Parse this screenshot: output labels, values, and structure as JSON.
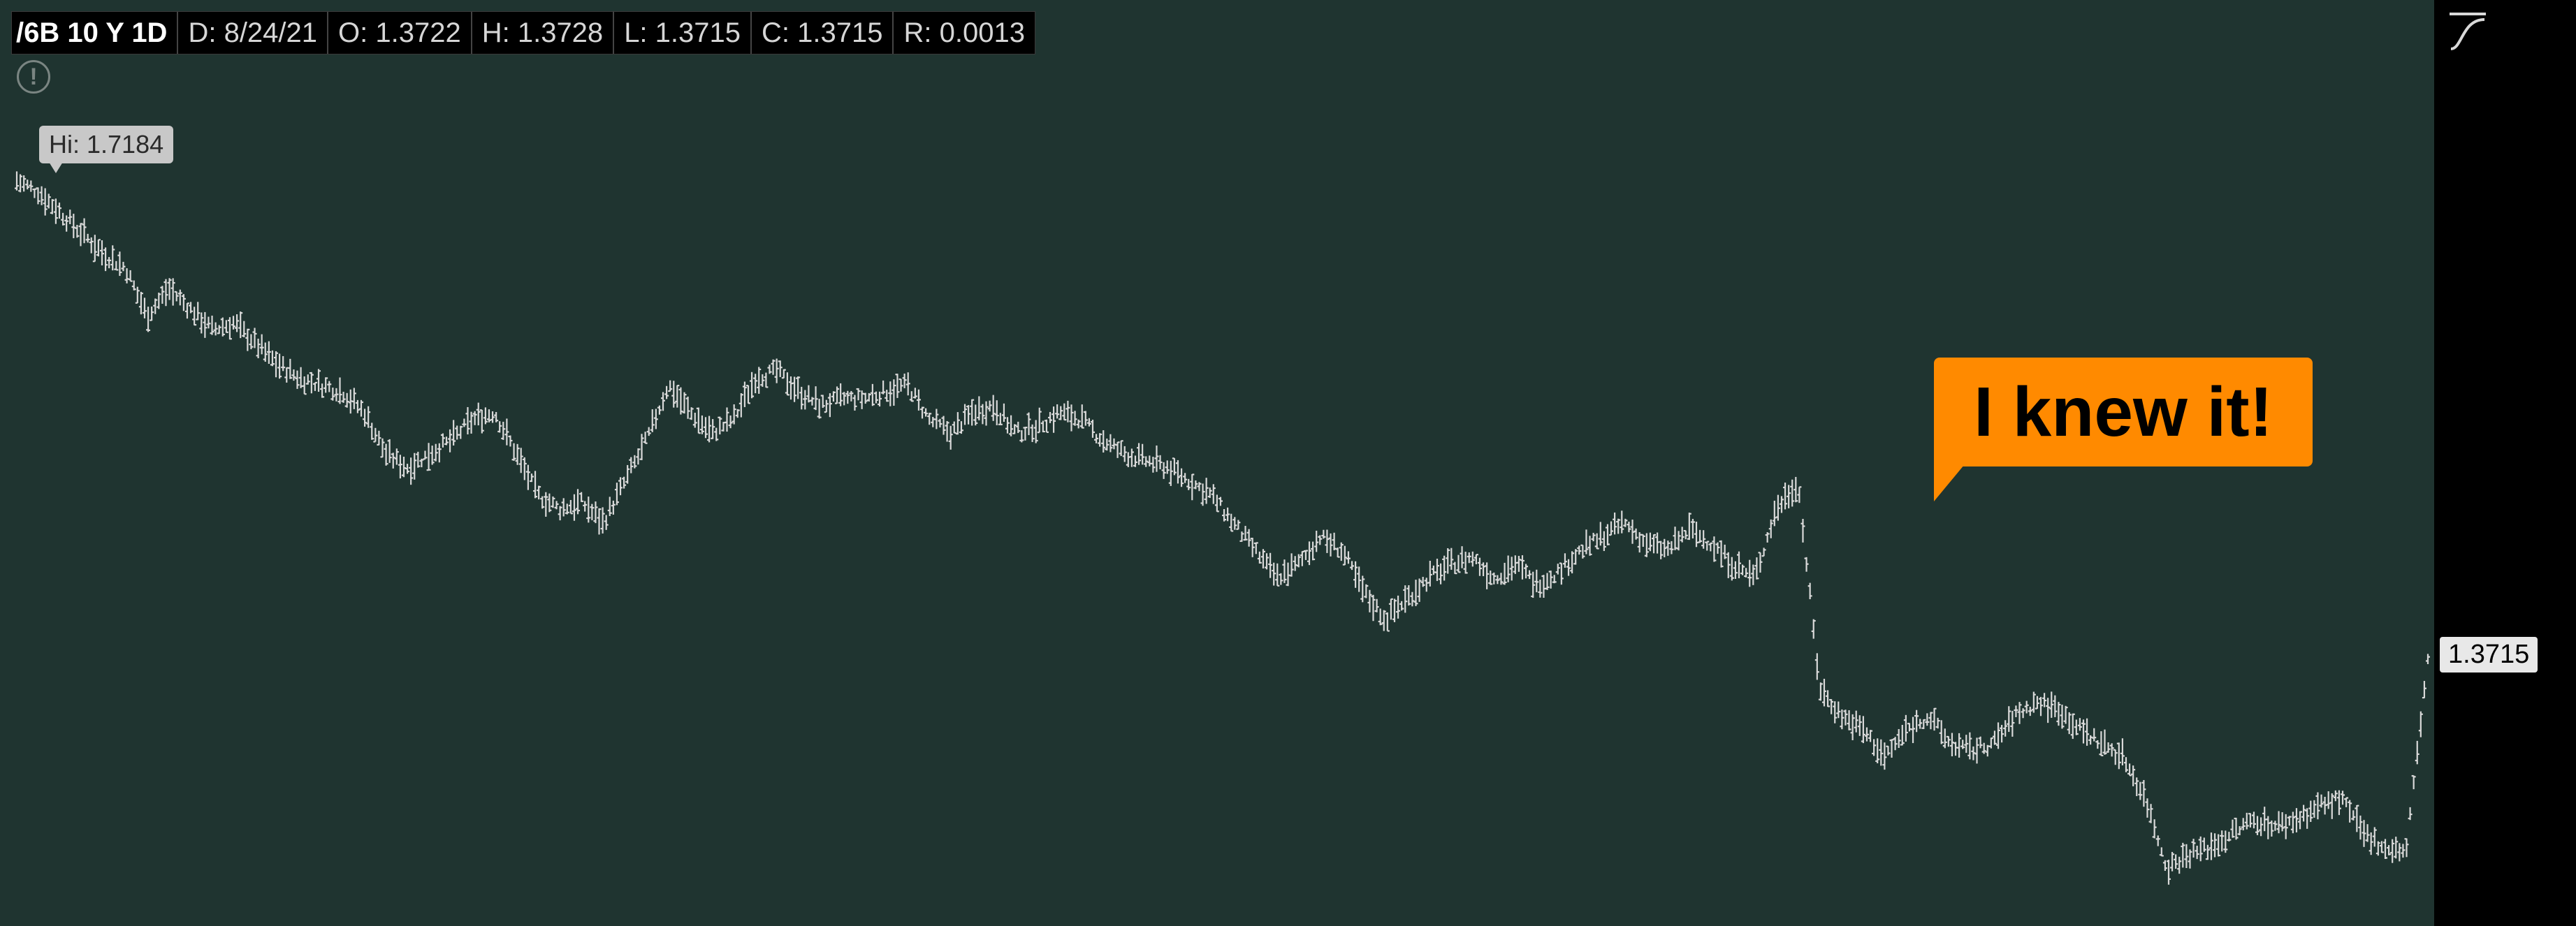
{
  "infobar": {
    "symbol": "/6B 10 Y 1D",
    "date": "D: 8/24/21",
    "open": "O: 1.3722",
    "high": "H: 1.3728",
    "low": "L: 1.3715",
    "close": "C: 1.3715",
    "range": "R: 0.0013"
  },
  "alert_icon": "!",
  "hi_label": "Hi: 1.7184",
  "callout": "I knew it!",
  "price_tag": "1.3715",
  "colors": {
    "background": "#1f3430",
    "axis_panel": "#000000",
    "bars": "#d9d9d9",
    "callout": "#ff8a00"
  },
  "chart_data": {
    "type": "line",
    "title": "",
    "xlabel": "",
    "ylabel": "",
    "ylim": [
      1.2,
      1.8
    ],
    "yticks": [
      "1.8",
      "1.75",
      "1.7",
      "1.65",
      "1.6",
      "1.55",
      "1.5",
      "1.45",
      "1.4",
      "1.35",
      "1.3",
      "1.25",
      "1.2"
    ],
    "grid": false,
    "annotations": [
      "Hi: 1.7184",
      "I knew it!",
      "1.3715"
    ],
    "series": [
      {
        "values": [
          1.718,
          1.71,
          1.695,
          1.68,
          1.665,
          1.655,
          1.62,
          1.64,
          1.625,
          1.61,
          1.615,
          1.6,
          1.585,
          1.575,
          1.57,
          1.565,
          1.55,
          1.52,
          1.51,
          1.52,
          1.53,
          1.545,
          1.55,
          1.52,
          1.49,
          1.48,
          1.485,
          1.47,
          1.5,
          1.53,
          1.57,
          1.55,
          1.535,
          1.545,
          1.575,
          1.58,
          1.565,
          1.555,
          1.56,
          1.56,
          1.565,
          1.57,
          1.545,
          1.535,
          1.55,
          1.555,
          1.535,
          1.54,
          1.55,
          1.545,
          1.53,
          1.52,
          1.515,
          1.51,
          1.5,
          1.49,
          1.47,
          1.45,
          1.43,
          1.44,
          1.46,
          1.45,
          1.42,
          1.4,
          1.415,
          1.43,
          1.44,
          1.445,
          1.43,
          1.44,
          1.425,
          1.435,
          1.45,
          1.46,
          1.47,
          1.455,
          1.45,
          1.465,
          1.455,
          1.44,
          1.43,
          1.48,
          1.5,
          1.35,
          1.33,
          1.32,
          1.3,
          1.32,
          1.33,
          1.31,
          1.305,
          1.31,
          1.33,
          1.34,
          1.335,
          1.32,
          1.31,
          1.3,
          1.27,
          1.22,
          1.23,
          1.235,
          1.245,
          1.255,
          1.25,
          1.255,
          1.265,
          1.27,
          1.245,
          1.235,
          1.2315,
          1.3715
        ]
      }
    ]
  }
}
